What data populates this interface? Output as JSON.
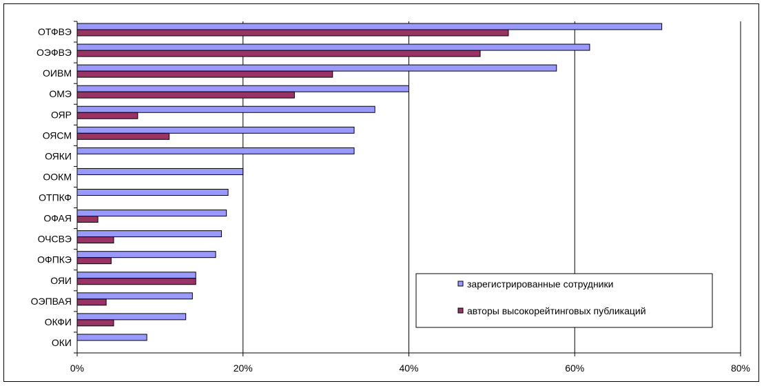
{
  "chart_data": {
    "type": "bar",
    "orientation": "horizontal",
    "title": "",
    "xlabel": "",
    "ylabel": "",
    "xlim": [
      0,
      80
    ],
    "x_ticks": [
      "0%",
      "20%",
      "40%",
      "60%",
      "80%"
    ],
    "x_tick_values": [
      0,
      20,
      40,
      60,
      80
    ],
    "grid": true,
    "legend_position": "bottom-right",
    "categories": [
      "ОТФВЭ",
      "ОЭФВЭ",
      "ОИВМ",
      "ОМЭ",
      "ОЯР",
      "ОЯСМ",
      "ОЯКИ",
      "ООКМ",
      "ОТПКФ",
      "ОФАЯ",
      "ОЧСВЭ",
      "ОФПКЭ",
      "ОЯИ",
      "ОЭПВАЯ",
      "ОКФИ",
      "ОКИ"
    ],
    "series": [
      {
        "name": "зарегистрированные сотрудники",
        "color": "#9999FF",
        "values": [
          70.5,
          61.8,
          57.8,
          40.0,
          35.9,
          33.4,
          33.4,
          20.0,
          18.2,
          18.0,
          17.4,
          16.7,
          14.3,
          13.9,
          13.1,
          8.4
        ]
      },
      {
        "name": "авторы высокорейтинговых публикаций",
        "color": "#993366",
        "values": [
          52.0,
          48.6,
          30.8,
          26.2,
          7.3,
          11.1,
          0,
          0,
          0,
          2.5,
          4.4,
          4.1,
          14.3,
          3.5,
          4.4,
          0
        ]
      }
    ]
  }
}
